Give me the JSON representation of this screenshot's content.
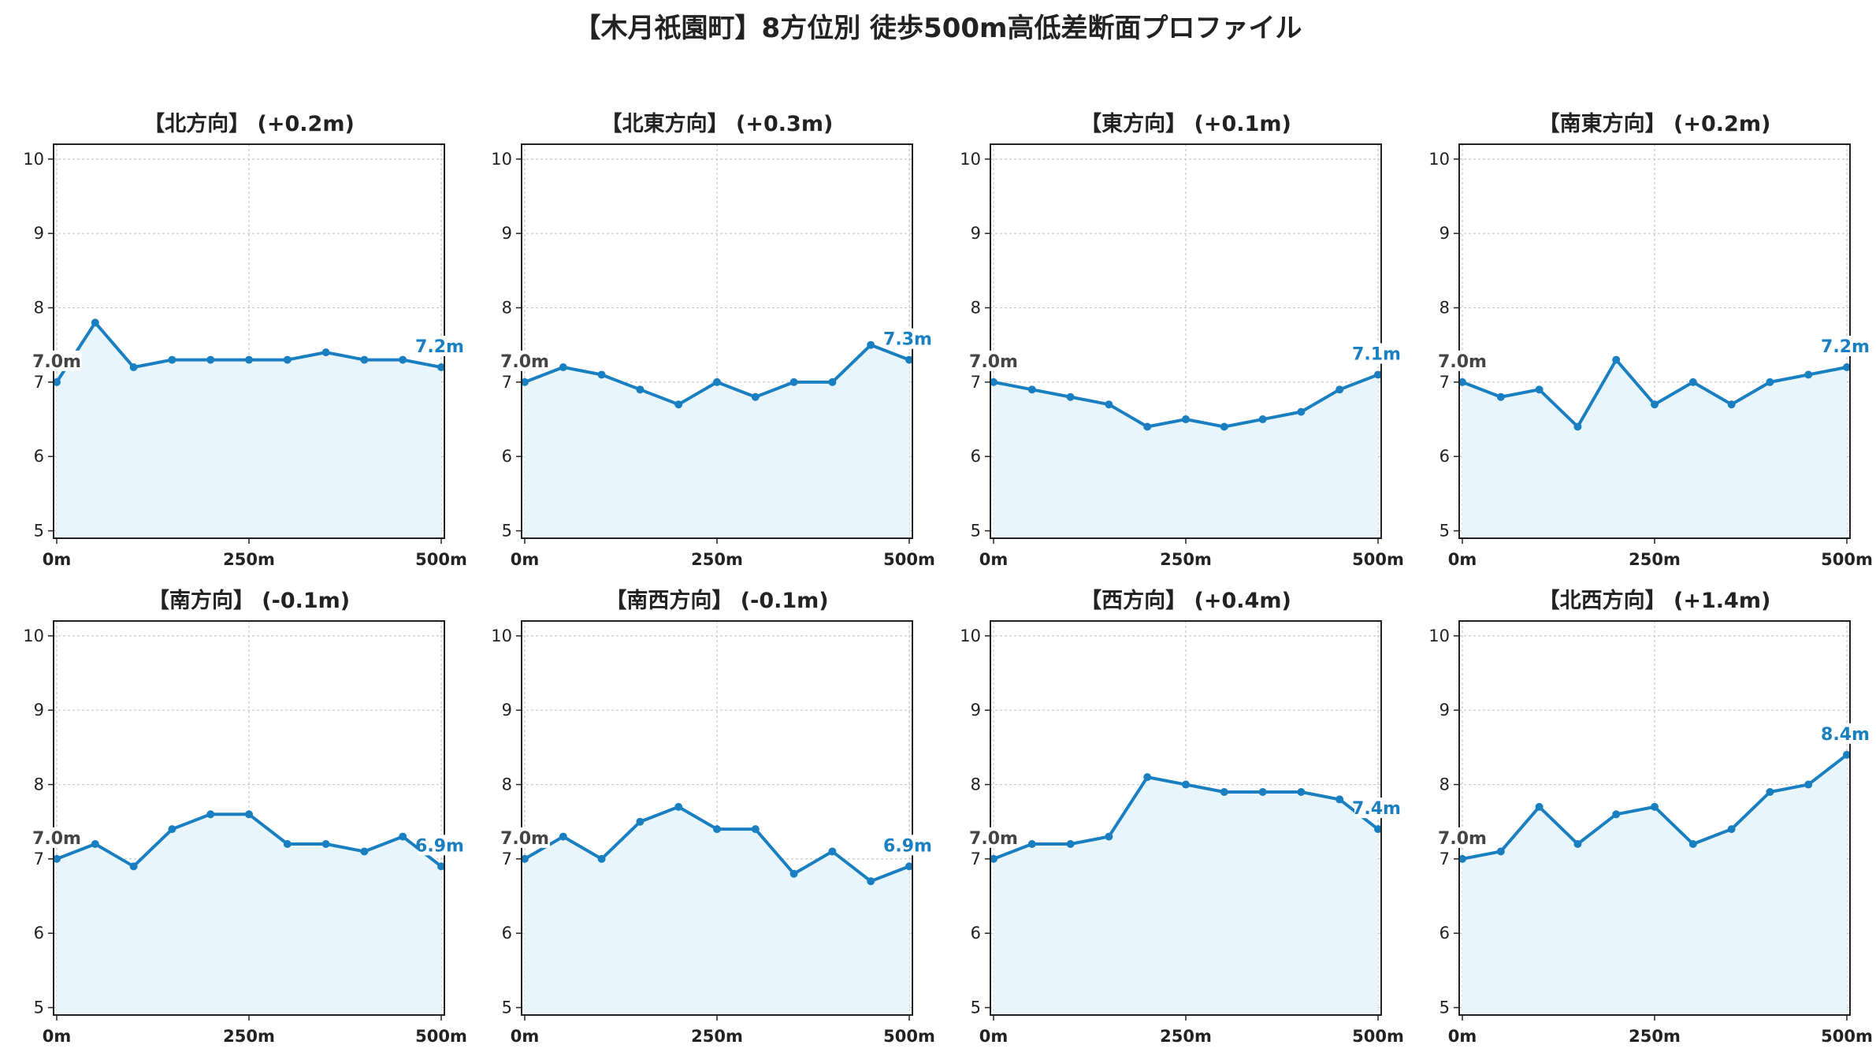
{
  "title": "【木月祇園町】8方位別 徒歩500m高低差断面プロファイル",
  "colors": {
    "line": "#1a7fc1",
    "fill": "#e8f6fc",
    "start_label": "#444444",
    "end_label": "#1a7fc1",
    "grid": "#c8c8c8"
  },
  "chart_data": [
    {
      "type": "area",
      "title": "【北方向】 (+0.2m)",
      "x": [
        0,
        50,
        100,
        150,
        200,
        250,
        300,
        350,
        400,
        450,
        500
      ],
      "values": [
        7.0,
        7.8,
        7.2,
        7.3,
        7.3,
        7.3,
        7.3,
        7.4,
        7.3,
        7.3,
        7.2
      ],
      "start_label": "7.0m",
      "end_label": "7.2m",
      "ylim": [
        4.9,
        10.2
      ],
      "yticks": [
        "5",
        "6",
        "7",
        "8",
        "9",
        "10"
      ],
      "xticks": [
        "0m",
        "250m",
        "500m"
      ],
      "grid": true
    },
    {
      "type": "area",
      "title": "【北東方向】 (+0.3m)",
      "x": [
        0,
        50,
        100,
        150,
        200,
        250,
        300,
        350,
        400,
        450,
        500
      ],
      "values": [
        7.0,
        7.2,
        7.1,
        6.9,
        6.7,
        7.0,
        6.8,
        7.0,
        7.0,
        7.5,
        7.3
      ],
      "start_label": "7.0m",
      "end_label": "7.3m",
      "ylim": [
        4.9,
        10.2
      ],
      "yticks": [
        "5",
        "6",
        "7",
        "8",
        "9",
        "10"
      ],
      "xticks": [
        "0m",
        "250m",
        "500m"
      ],
      "grid": true
    },
    {
      "type": "area",
      "title": "【東方向】 (+0.1m)",
      "x": [
        0,
        50,
        100,
        150,
        200,
        250,
        300,
        350,
        400,
        450,
        500
      ],
      "values": [
        7.0,
        6.9,
        6.8,
        6.7,
        6.4,
        6.5,
        6.4,
        6.5,
        6.6,
        6.9,
        7.1
      ],
      "start_label": "7.0m",
      "end_label": "7.1m",
      "ylim": [
        4.9,
        10.2
      ],
      "yticks": [
        "5",
        "6",
        "7",
        "8",
        "9",
        "10"
      ],
      "xticks": [
        "0m",
        "250m",
        "500m"
      ],
      "grid": true
    },
    {
      "type": "area",
      "title": "【南東方向】 (+0.2m)",
      "x": [
        0,
        50,
        100,
        150,
        200,
        250,
        300,
        350,
        400,
        450,
        500
      ],
      "values": [
        7.0,
        6.8,
        6.9,
        6.4,
        7.3,
        6.7,
        7.0,
        6.7,
        7.0,
        7.1,
        7.2
      ],
      "start_label": "7.0m",
      "end_label": "7.2m",
      "ylim": [
        4.9,
        10.2
      ],
      "yticks": [
        "5",
        "6",
        "7",
        "8",
        "9",
        "10"
      ],
      "xticks": [
        "0m",
        "250m",
        "500m"
      ],
      "grid": true
    },
    {
      "type": "area",
      "title": "【南方向】 (-0.1m)",
      "x": [
        0,
        50,
        100,
        150,
        200,
        250,
        300,
        350,
        400,
        450,
        500
      ],
      "values": [
        7.0,
        7.2,
        6.9,
        7.4,
        7.6,
        7.6,
        7.2,
        7.2,
        7.1,
        7.3,
        6.9
      ],
      "start_label": "7.0m",
      "end_label": "6.9m",
      "ylim": [
        4.9,
        10.2
      ],
      "yticks": [
        "5",
        "6",
        "7",
        "8",
        "9",
        "10"
      ],
      "xticks": [
        "0m",
        "250m",
        "500m"
      ],
      "grid": true
    },
    {
      "type": "area",
      "title": "【南西方向】 (-0.1m)",
      "x": [
        0,
        50,
        100,
        150,
        200,
        250,
        300,
        350,
        400,
        450,
        500
      ],
      "values": [
        7.0,
        7.3,
        7.0,
        7.5,
        7.7,
        7.4,
        7.4,
        6.8,
        7.1,
        6.7,
        6.9
      ],
      "start_label": "7.0m",
      "end_label": "6.9m",
      "ylim": [
        4.9,
        10.2
      ],
      "yticks": [
        "5",
        "6",
        "7",
        "8",
        "9",
        "10"
      ],
      "xticks": [
        "0m",
        "250m",
        "500m"
      ],
      "grid": true
    },
    {
      "type": "area",
      "title": "【西方向】 (+0.4m)",
      "x": [
        0,
        50,
        100,
        150,
        200,
        250,
        300,
        350,
        400,
        450,
        500
      ],
      "values": [
        7.0,
        7.2,
        7.2,
        7.3,
        8.1,
        8.0,
        7.9,
        7.9,
        7.9,
        7.8,
        7.4
      ],
      "start_label": "7.0m",
      "end_label": "7.4m",
      "ylim": [
        4.9,
        10.2
      ],
      "yticks": [
        "5",
        "6",
        "7",
        "8",
        "9",
        "10"
      ],
      "xticks": [
        "0m",
        "250m",
        "500m"
      ],
      "grid": true
    },
    {
      "type": "area",
      "title": "【北西方向】 (+1.4m)",
      "x": [
        0,
        50,
        100,
        150,
        200,
        250,
        300,
        350,
        400,
        450,
        500
      ],
      "values": [
        7.0,
        7.1,
        7.7,
        7.2,
        7.6,
        7.7,
        7.2,
        7.4,
        7.9,
        8.0,
        8.4
      ],
      "start_label": "7.0m",
      "end_label": "8.4m",
      "ylim": [
        4.9,
        10.2
      ],
      "yticks": [
        "5",
        "6",
        "7",
        "8",
        "9",
        "10"
      ],
      "xticks": [
        "0m",
        "250m",
        "500m"
      ],
      "grid": true
    }
  ]
}
